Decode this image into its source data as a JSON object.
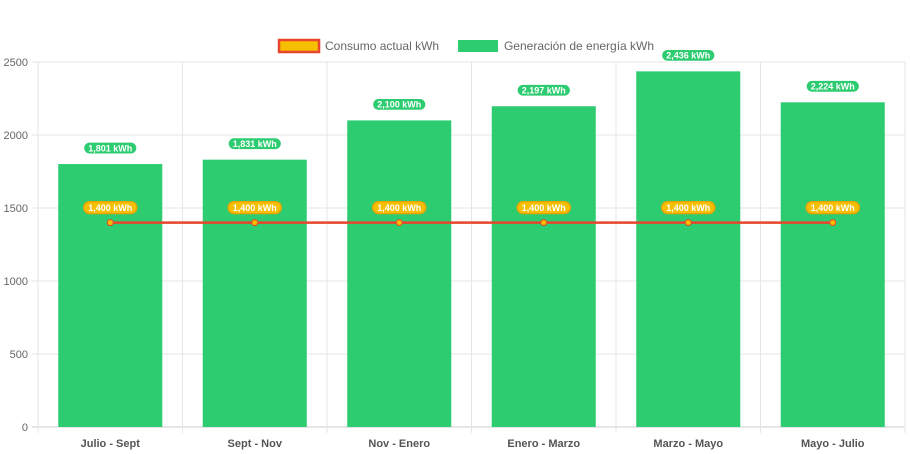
{
  "chart_data": {
    "type": "bar",
    "categories": [
      "Julio - Sept",
      "Sept - Nov",
      "Nov - Enero",
      "Enero - Marzo",
      "Marzo - Mayo",
      "Mayo - Julio"
    ],
    "y_ticks": [
      "0",
      "500",
      "1000",
      "1500",
      "2000",
      "2500"
    ],
    "ylim": [
      0,
      2500
    ],
    "grid": true,
    "legend_position": "top",
    "series": [
      {
        "name": "Consumo actual kWh",
        "type": "line",
        "values": [
          1400,
          1400,
          1400,
          1400,
          1400,
          1400
        ],
        "labels": [
          "1,400 kWh",
          "1,400 kWh",
          "1,400 kWh",
          "1,400 kWh",
          "1,400 kWh",
          "1,400 kWh"
        ],
        "color": "#e8452c",
        "fill_color": "#f5bf00"
      },
      {
        "name": "Generación de energía kWh",
        "type": "bar",
        "values": [
          1801,
          1831,
          2100,
          2197,
          2436,
          2224
        ],
        "labels": [
          "1,801 kWh",
          "1,831 kWh",
          "2,100 kWh",
          "2,197 kWh",
          "2,436 kWh",
          "2,224 kWh"
        ],
        "color": "#2ecc71"
      }
    ]
  }
}
